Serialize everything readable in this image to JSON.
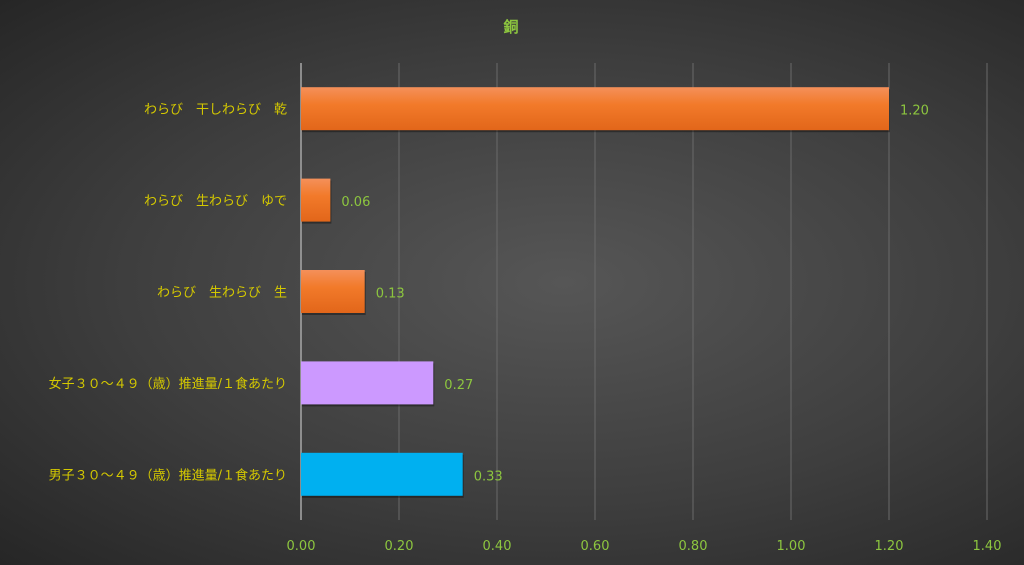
{
  "chart_data": {
    "type": "bar",
    "orientation": "horizontal",
    "title": "銅",
    "categories": [
      "わらび　干しわらび　乾",
      "わらび　生わらび　ゆで",
      "わらび　生わらび　生",
      "女子３０～４９（歳）推進量/１食あたり",
      "男子３０～４９（歳）推進量/１食あたり"
    ],
    "values": [
      1.2,
      0.06,
      0.13,
      0.27,
      0.33
    ],
    "value_labels": [
      "1.20",
      "0.06",
      "0.13",
      "0.27",
      "0.33"
    ],
    "bar_colors": [
      "#f07a2a",
      "#f07a2a",
      "#f07a2a",
      "#cc99ff",
      "#00b0f0"
    ],
    "xlim": [
      0,
      1.4
    ],
    "xticks": [
      "0.00",
      "0.20",
      "0.40",
      "0.60",
      "0.80",
      "1.00",
      "1.20",
      "1.40"
    ],
    "grid": true,
    "colors": {
      "title": "#8dc63f",
      "category_text": "#d4c800",
      "tick_text": "#8dc63f",
      "label_text": "#8dc63f"
    }
  }
}
